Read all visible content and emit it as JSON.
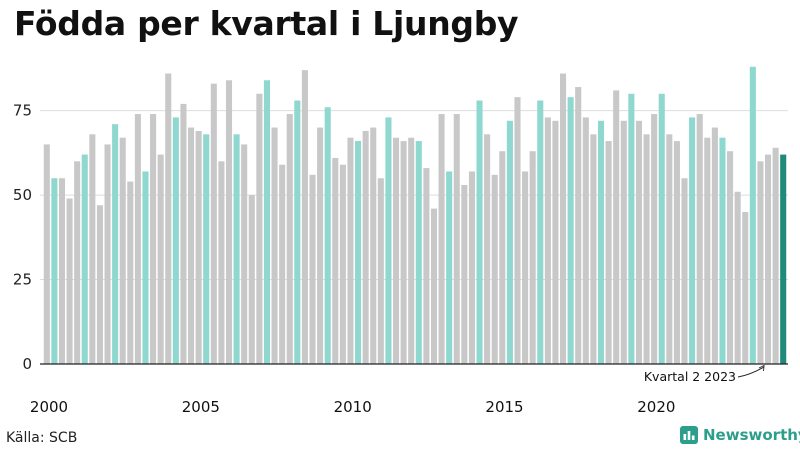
{
  "title": "Födda per kvartal i Ljungby",
  "source": "Källa: SCB",
  "brand": {
    "name": "Newsworthy",
    "icon": "bar-chart-icon"
  },
  "colors": {
    "q1": "#8ed8cf",
    "other": "#c8c8c8",
    "latest": "#1f8a7a",
    "axis": "#222222",
    "grid": "#dddddd",
    "brand": "#2b9f8b"
  },
  "chart_data": {
    "type": "bar",
    "title": "Födda per kvartal i Ljungby",
    "xlabel": "",
    "ylabel": "",
    "ylim": [
      0,
      90
    ],
    "yticks": [
      0,
      25,
      50,
      75
    ],
    "xticks": [
      "2000",
      "2005",
      "2010",
      "2015",
      "2020"
    ],
    "grid": true,
    "highlight": "first quarter of each year",
    "annotation": "Kvartal 2 2023",
    "series": [
      {
        "values": [
          65,
          55,
          55,
          49,
          60,
          62,
          68,
          47,
          65,
          71,
          67,
          54,
          74,
          57,
          74,
          62,
          86,
          73,
          77,
          70,
          69,
          68,
          83,
          60,
          84,
          68,
          65,
          50,
          80,
          84,
          70,
          59,
          74,
          78,
          87,
          56,
          70,
          76,
          61,
          59,
          67,
          66,
          69,
          70,
          55,
          73,
          67,
          66,
          67,
          66,
          58,
          46,
          74,
          57,
          74,
          53,
          57,
          78,
          68,
          56,
          63,
          72,
          79,
          57,
          63,
          78,
          73,
          72,
          86,
          79,
          82,
          73,
          68,
          72,
          66,
          81,
          72,
          80,
          72,
          68,
          74,
          80,
          68,
          66,
          55,
          73,
          74,
          67,
          70,
          67,
          63,
          51,
          45,
          88,
          60,
          62,
          64,
          62
        ]
      }
    ]
  }
}
